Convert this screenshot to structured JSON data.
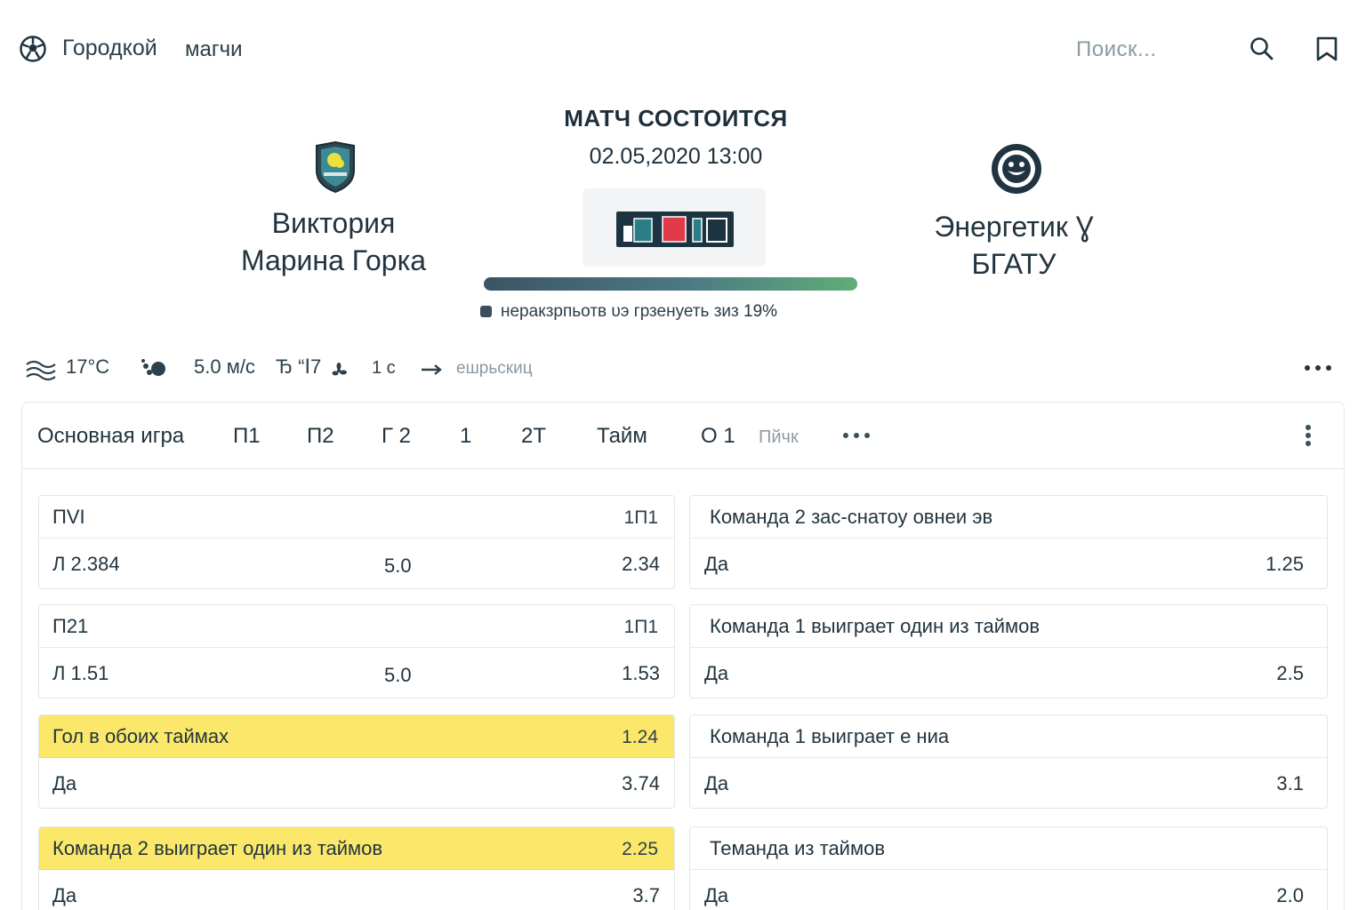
{
  "header": {
    "brand": "Городкой",
    "nav_link": "магчи",
    "search_placeholder": "Поиск..."
  },
  "match": {
    "status": "МАТЧ СОСТОИТСЯ",
    "datetime": "02.05,2020 13:00",
    "home_team_line1": "Виктория",
    "home_team_line2": "Марина Горка",
    "away_team_line1": "Энергетик Ɣ",
    "away_team_line2": "БГАТУ",
    "progress_caption": "неракзрпьотв υэ грзенуеть зиз",
    "progress_percent": "19%",
    "progress_value": 0.19,
    "colors": {
      "score_red": "#e2394a",
      "score_teal": "#2a7f86",
      "score_bg": "#1c3340",
      "progress_start": "#3c5463",
      "progress_end": "#5fad78"
    }
  },
  "weather": {
    "temp": "17°C",
    "wind": "5.0 м/с",
    "extra1": "Ђ “Ⅰ7",
    "extra2": "1 с",
    "extra3": "ешрьскиц"
  },
  "tabs": [
    {
      "label": "Основная игра"
    },
    {
      "label": "П1"
    },
    {
      "label": "П2"
    },
    {
      "label": "Г 2"
    },
    {
      "label": "1"
    },
    {
      "label": "2Т"
    },
    {
      "label": "Тайм"
    },
    {
      "label": "О 1"
    },
    {
      "label": "Пйчк"
    }
  ],
  "left_cards": [
    {
      "title": "ПVI",
      "head_value": "1П1",
      "label": "Л 2.384",
      "mid": "5.0",
      "value": "2.34",
      "highlight": false
    },
    {
      "title": "П21",
      "head_value": "1П1",
      "label": "Л 1.51",
      "mid": "5.0",
      "value": "1.53",
      "highlight": false
    },
    {
      "title": "Гол в обоих таймах",
      "head_value": "1.24",
      "label": "Да",
      "mid": "",
      "value": "3.74",
      "highlight": true
    },
    {
      "title": "Команда 2 выиграет один из таймов",
      "head_value": "2.25",
      "label": "Да",
      "mid": "",
      "value": "3.7",
      "highlight": true
    }
  ],
  "right_cards": [
    {
      "title": "Команда 2 зас-снатоу овнеи эв",
      "label": "Да",
      "value": "1.25"
    },
    {
      "title": "Команда 1 выиграет один из таймов",
      "label": "Да",
      "value": "2.5"
    },
    {
      "title": "Команда 1 выиграет е ниа",
      "label": "Да",
      "value": "3.1"
    },
    {
      "title": "Теманда из таймов",
      "label": "Да",
      "value": "2.0"
    }
  ]
}
